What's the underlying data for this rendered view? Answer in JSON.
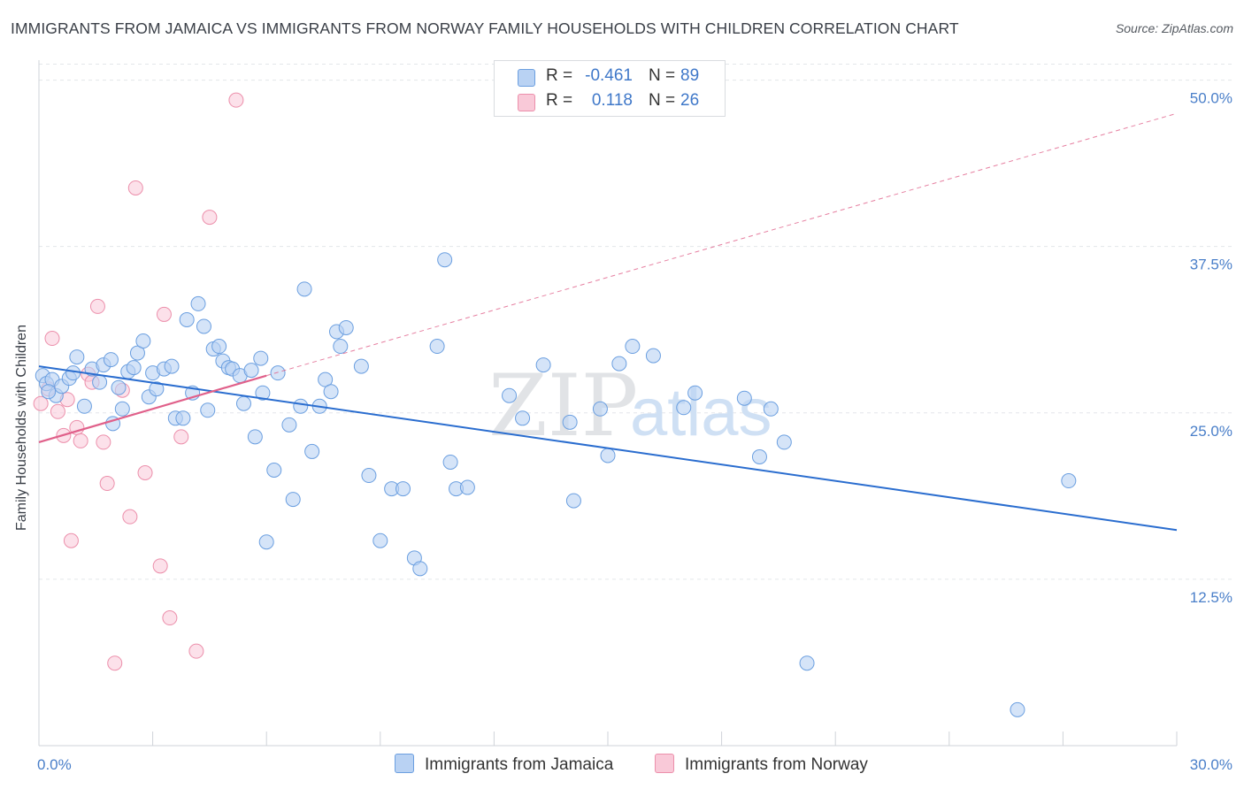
{
  "header": {
    "title": "IMMIGRANTS FROM JAMAICA VS IMMIGRANTS FROM NORWAY FAMILY HOUSEHOLDS WITH CHILDREN CORRELATION CHART",
    "source": "Source: ZipAtlas.com"
  },
  "watermark": {
    "zip": "ZIP",
    "atlas": "atlas"
  },
  "legend": {
    "rows": [
      {
        "r_label": "R =",
        "r_value": "-0.461",
        "n_label": "N =",
        "n_value": "89"
      },
      {
        "r_label": "R =",
        "r_value": "0.118",
        "n_label": "N =",
        "n_value": "26"
      }
    ]
  },
  "bottom_legend": {
    "jamaica": "Immigrants from Jamaica",
    "norway": "Immigrants from Norway"
  },
  "colors": {
    "jamaica_fill": "#b9d2f3",
    "jamaica_stroke": "#6b9fe0",
    "jamaica_line": "#2a6dcf",
    "norway_fill": "#f9c9d8",
    "norway_stroke": "#ec8fab",
    "norway_line": "#e0608a",
    "grid": "#e3e6ea",
    "tick_label": "#4a7fc9"
  },
  "chart_data": {
    "type": "scatter",
    "title": "IMMIGRANTS FROM JAMAICA VS IMMIGRANTS FROM NORWAY FAMILY HOUSEHOLDS WITH CHILDREN CORRELATION CHART",
    "xlabel": "",
    "ylabel": "Family Households with Children",
    "xlim": [
      0,
      30
    ],
    "ylim": [
      0,
      51.5
    ],
    "x_tick_labels": [
      "0.0%",
      "30.0%"
    ],
    "y_ticks": [
      12.5,
      25.0,
      37.5,
      50.0
    ],
    "y_tick_labels": [
      "12.5%",
      "25.0%",
      "37.5%",
      "50.0%"
    ],
    "grid": true,
    "legend_position": "top-center",
    "series": [
      {
        "name": "Immigrants from Jamaica",
        "R": -0.461,
        "N": 89,
        "trend": {
          "x": [
            0,
            30
          ],
          "y": [
            28.5,
            16.2
          ]
        },
        "points": [
          [
            0.1,
            27.8
          ],
          [
            0.2,
            27.2
          ],
          [
            0.35,
            27.5
          ],
          [
            0.45,
            26.3
          ],
          [
            0.6,
            27.0
          ],
          [
            0.8,
            27.6
          ],
          [
            0.9,
            28.0
          ],
          [
            1.0,
            29.2
          ],
          [
            1.2,
            25.5
          ],
          [
            1.4,
            28.3
          ],
          [
            1.6,
            27.3
          ],
          [
            1.7,
            28.6
          ],
          [
            1.9,
            29.0
          ],
          [
            1.95,
            24.2
          ],
          [
            2.1,
            26.9
          ],
          [
            2.2,
            25.3
          ],
          [
            2.35,
            28.1
          ],
          [
            2.5,
            28.4
          ],
          [
            2.6,
            29.5
          ],
          [
            2.75,
            30.4
          ],
          [
            2.9,
            26.2
          ],
          [
            3.0,
            28.0
          ],
          [
            3.1,
            26.8
          ],
          [
            3.3,
            28.3
          ],
          [
            3.5,
            28.5
          ],
          [
            3.6,
            24.6
          ],
          [
            3.8,
            24.6
          ],
          [
            3.9,
            32.0
          ],
          [
            4.05,
            26.5
          ],
          [
            4.2,
            33.2
          ],
          [
            4.35,
            31.5
          ],
          [
            4.45,
            25.2
          ],
          [
            4.6,
            29.8
          ],
          [
            4.75,
            30.0
          ],
          [
            4.85,
            28.9
          ],
          [
            5.0,
            28.4
          ],
          [
            5.1,
            28.3
          ],
          [
            5.3,
            27.8
          ],
          [
            5.4,
            25.7
          ],
          [
            5.6,
            28.2
          ],
          [
            5.7,
            23.2
          ],
          [
            5.85,
            29.1
          ],
          [
            5.9,
            26.5
          ],
          [
            6.0,
            15.3
          ],
          [
            6.2,
            20.7
          ],
          [
            6.3,
            28.0
          ],
          [
            6.6,
            24.1
          ],
          [
            6.7,
            18.5
          ],
          [
            6.9,
            25.5
          ],
          [
            7.0,
            34.3
          ],
          [
            7.2,
            22.1
          ],
          [
            7.4,
            25.5
          ],
          [
            7.55,
            27.5
          ],
          [
            7.7,
            26.6
          ],
          [
            7.85,
            31.1
          ],
          [
            7.95,
            30.0
          ],
          [
            8.1,
            31.4
          ],
          [
            8.5,
            28.5
          ],
          [
            8.7,
            20.3
          ],
          [
            9.0,
            15.4
          ],
          [
            9.3,
            19.3
          ],
          [
            9.6,
            19.3
          ],
          [
            9.9,
            14.1
          ],
          [
            10.05,
            13.3
          ],
          [
            10.5,
            30.0
          ],
          [
            10.7,
            36.5
          ],
          [
            10.85,
            21.3
          ],
          [
            11.0,
            19.3
          ],
          [
            11.3,
            19.4
          ],
          [
            12.4,
            26.3
          ],
          [
            12.75,
            24.6
          ],
          [
            13.3,
            28.6
          ],
          [
            14.0,
            24.3
          ],
          [
            14.1,
            18.4
          ],
          [
            14.8,
            25.3
          ],
          [
            15.0,
            21.8
          ],
          [
            15.3,
            28.7
          ],
          [
            15.65,
            30.0
          ],
          [
            16.2,
            29.3
          ],
          [
            17.0,
            25.4
          ],
          [
            17.3,
            26.5
          ],
          [
            18.6,
            26.1
          ],
          [
            19.0,
            21.7
          ],
          [
            19.3,
            25.3
          ],
          [
            19.65,
            22.8
          ],
          [
            20.25,
            6.2
          ],
          [
            25.8,
            2.7
          ],
          [
            27.15,
            19.9
          ],
          [
            0.25,
            26.6
          ]
        ]
      },
      {
        "name": "Immigrants from Norway",
        "R": 0.118,
        "N": 26,
        "trend": {
          "x": [
            0,
            6
          ],
          "y": [
            22.8,
            27.8
          ]
        },
        "trend_dashed": {
          "x": [
            6,
            30
          ],
          "y": [
            27.8,
            47.5
          ]
        },
        "points": [
          [
            0.05,
            25.7
          ],
          [
            0.25,
            26.8
          ],
          [
            0.35,
            30.6
          ],
          [
            0.5,
            25.1
          ],
          [
            0.65,
            23.3
          ],
          [
            0.75,
            26.0
          ],
          [
            0.85,
            15.4
          ],
          [
            1.0,
            23.9
          ],
          [
            1.1,
            22.9
          ],
          [
            1.3,
            27.9
          ],
          [
            1.4,
            27.3
          ],
          [
            1.55,
            33.0
          ],
          [
            1.7,
            22.8
          ],
          [
            1.8,
            19.7
          ],
          [
            2.0,
            6.2
          ],
          [
            2.2,
            26.7
          ],
          [
            2.4,
            17.2
          ],
          [
            2.55,
            41.9
          ],
          [
            2.8,
            20.5
          ],
          [
            3.2,
            13.5
          ],
          [
            3.3,
            32.4
          ],
          [
            3.45,
            9.6
          ],
          [
            3.75,
            23.2
          ],
          [
            4.15,
            7.1
          ],
          [
            4.5,
            39.7
          ],
          [
            5.2,
            48.5
          ]
        ]
      }
    ]
  }
}
